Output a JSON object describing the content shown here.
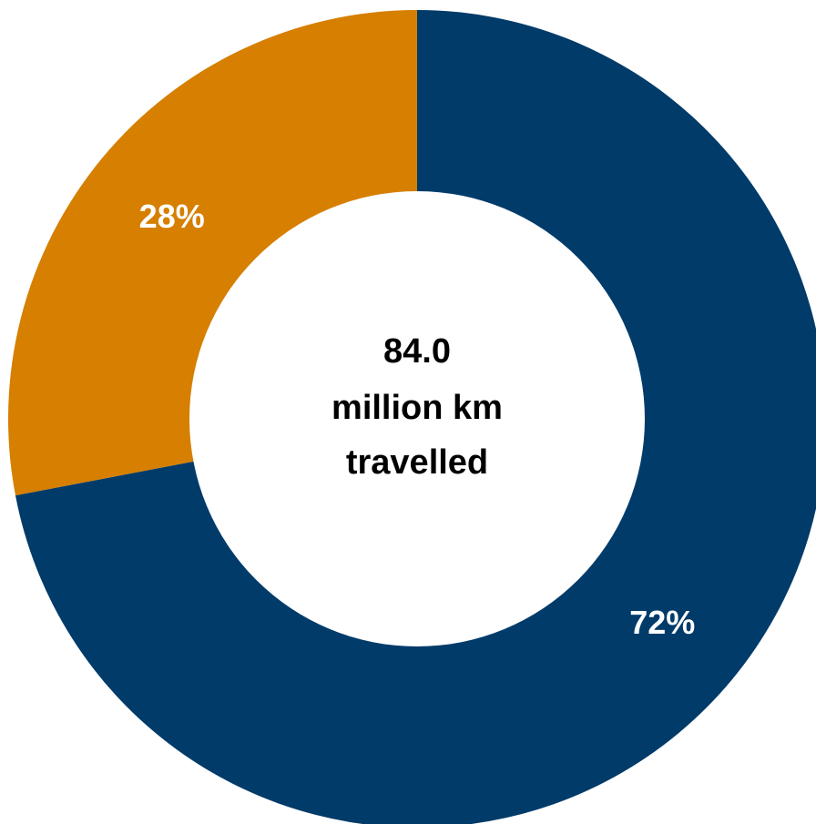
{
  "chart_data": {
    "type": "pie",
    "variant": "donut",
    "slices": [
      {
        "value": 72,
        "label": "72%",
        "color": "#003B6A"
      },
      {
        "value": 28,
        "label": "28%",
        "color": "#D67F00"
      }
    ],
    "center_text": [
      "84.0",
      "million km",
      "travelled"
    ],
    "legend": "none"
  }
}
